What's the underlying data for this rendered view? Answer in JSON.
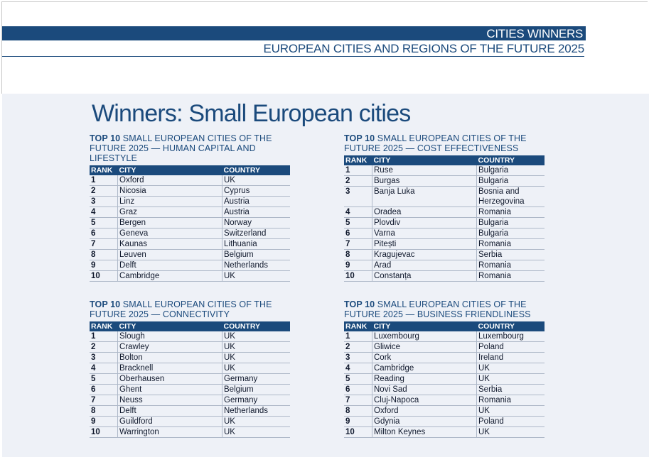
{
  "header": {
    "section": "CITIES WINNERS",
    "subtitle": "EUROPEAN CITIES AND REGIONS OF THE FUTURE 2025"
  },
  "page_title": "Winners: Small European cities",
  "columns": {
    "rank": "RANK",
    "city": "CITY",
    "country": "COUNTRY"
  },
  "tables": [
    {
      "title_bold": "TOP 10",
      "title_rest": " SMALL EUROPEAN CITIES OF THE FUTURE 2025 — HUMAN CAPITAL AND LIFESTYLE",
      "rows": [
        {
          "rank": "1",
          "city": "Oxford",
          "country": "UK"
        },
        {
          "rank": "2",
          "city": "Nicosia",
          "country": "Cyprus"
        },
        {
          "rank": "3",
          "city": "Linz",
          "country": "Austria"
        },
        {
          "rank": "4",
          "city": "Graz",
          "country": "Austria"
        },
        {
          "rank": "5",
          "city": "Bergen",
          "country": "Norway"
        },
        {
          "rank": "6",
          "city": "Geneva",
          "country": "Switzerland"
        },
        {
          "rank": "7",
          "city": "Kaunas",
          "country": "Lithuania"
        },
        {
          "rank": "8",
          "city": "Leuven",
          "country": "Belgium"
        },
        {
          "rank": "9",
          "city": "Delft",
          "country": "Netherlands"
        },
        {
          "rank": "10",
          "city": "Cambridge",
          "country": "UK"
        }
      ]
    },
    {
      "title_bold": "TOP 10",
      "title_rest": " SMALL EUROPEAN CITIES OF THE FUTURE 2025 — COST EFFECTIVENESS",
      "rows": [
        {
          "rank": "1",
          "city": "Ruse",
          "country": "Bulgaria"
        },
        {
          "rank": "2",
          "city": "Burgas",
          "country": "Bulgaria"
        },
        {
          "rank": "3",
          "city": "Banja Luka",
          "country": "Bosnia and Herzegovina"
        },
        {
          "rank": "4",
          "city": "Oradea",
          "country": "Romania"
        },
        {
          "rank": "5",
          "city": "Plovdiv",
          "country": "Bulgaria"
        },
        {
          "rank": "6",
          "city": "Varna",
          "country": "Bulgaria"
        },
        {
          "rank": "7",
          "city": "Pitești",
          "country": "Romania"
        },
        {
          "rank": "8",
          "city": "Kragujevac",
          "country": "Serbia"
        },
        {
          "rank": "9",
          "city": "Arad",
          "country": "Romania"
        },
        {
          "rank": "10",
          "city": "Constanța",
          "country": "Romania"
        }
      ]
    },
    {
      "title_bold": "TOP 10",
      "title_rest": " SMALL EUROPEAN CITIES OF THE FUTURE 2025 — CONNECTIVITY",
      "rows": [
        {
          "rank": "1",
          "city": "Slough",
          "country": "UK"
        },
        {
          "rank": "2",
          "city": "Crawley",
          "country": "UK"
        },
        {
          "rank": "3",
          "city": "Bolton",
          "country": "UK"
        },
        {
          "rank": "4",
          "city": "Bracknell",
          "country": "UK"
        },
        {
          "rank": "5",
          "city": "Oberhausen",
          "country": "Germany"
        },
        {
          "rank": "6",
          "city": "Ghent",
          "country": "Belgium"
        },
        {
          "rank": "7",
          "city": "Neuss",
          "country": "Germany"
        },
        {
          "rank": "8",
          "city": "Delft",
          "country": "Netherlands"
        },
        {
          "rank": "9",
          "city": "Guildford",
          "country": "UK"
        },
        {
          "rank": "10",
          "city": "Warrington",
          "country": "UK"
        }
      ]
    },
    {
      "title_bold": "TOP 10",
      "title_rest": " SMALL EUROPEAN CITIES OF THE FUTURE 2025 — BUSINESS FRIENDLINESS",
      "rows": [
        {
          "rank": "1",
          "city": "Luxembourg",
          "country": "Luxembourg"
        },
        {
          "rank": "2",
          "city": "Gliwice",
          "country": "Poland"
        },
        {
          "rank": "3",
          "city": "Cork",
          "country": "Ireland"
        },
        {
          "rank": "4",
          "city": "Cambridge",
          "country": "UK"
        },
        {
          "rank": "5",
          "city": "Reading",
          "country": "UK"
        },
        {
          "rank": "6",
          "city": "Novi Sad",
          "country": "Serbia"
        },
        {
          "rank": "7",
          "city": "Cluj-Napoca",
          "country": "Romania"
        },
        {
          "rank": "8",
          "city": "Oxford",
          "country": "UK"
        },
        {
          "rank": "9",
          "city": "Gdynia",
          "country": "Poland"
        },
        {
          "rank": "10",
          "city": "Milton Keynes",
          "country": "UK"
        }
      ]
    }
  ]
}
